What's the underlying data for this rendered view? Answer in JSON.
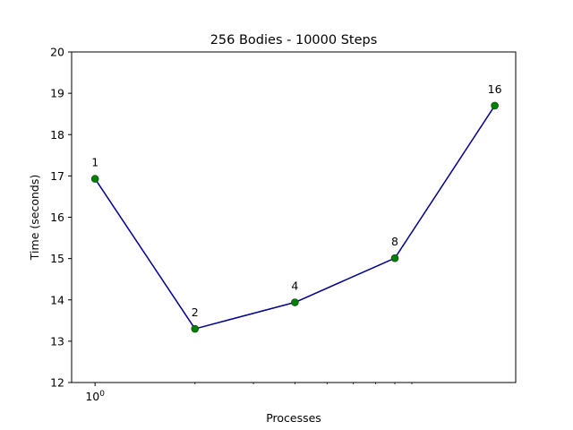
{
  "chart_data": {
    "type": "line",
    "title": "256 Bodies - 10000 Steps",
    "xlabel": "Processes",
    "ylabel": "Time (seconds)",
    "xscale": "log",
    "xlim": [
      0.85,
      18.5
    ],
    "ylim": [
      12,
      20
    ],
    "yticks": [
      12,
      13,
      14,
      15,
      16,
      17,
      18,
      19,
      20
    ],
    "xtick_labels": [
      {
        "value": 1,
        "base": "10",
        "exp": "0"
      }
    ],
    "x_major_ticks": [
      1
    ],
    "x_minor_ticks": [
      2,
      3,
      4,
      5,
      6,
      7,
      8,
      9
    ],
    "grid": false,
    "legend": "none",
    "series": [
      {
        "x": [
          1,
          2,
          4,
          8,
          16
        ],
        "y": [
          16.93,
          13.3,
          13.94,
          15.01,
          18.7
        ],
        "point_labels": [
          "1",
          "2",
          "4",
          "8",
          "16"
        ],
        "line_color": "#00008b",
        "marker_color": "#008000"
      }
    ]
  }
}
